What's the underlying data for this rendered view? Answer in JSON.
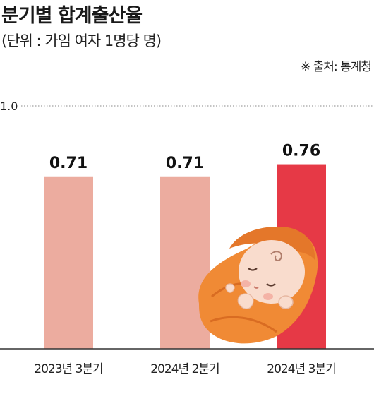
{
  "chart_data": {
    "type": "bar",
    "title": "분기별 합계출산율",
    "subtitle": "(단위 : 가임 여자 1명당 명)",
    "source": "※ 출처: 통계청",
    "categories": [
      "2023년 3분기",
      "2024년 2분기",
      "2024년 3분기"
    ],
    "values": [
      0.71,
      0.71,
      0.76
    ],
    "value_labels": [
      "0.71",
      "0.71",
      "0.76"
    ],
    "ylim": [
      0,
      1.0
    ],
    "yticks": [
      {
        "value": 1.0,
        "label": "1.0"
      }
    ],
    "colors": [
      "#ecac9f",
      "#ecac9f",
      "#e63946"
    ],
    "grid": "dotted line at 1.0"
  },
  "illustration": {
    "name": "sleeping-baby-in-blanket",
    "blanket_color": "#f08a35",
    "skin_color": "#f9dccd"
  }
}
